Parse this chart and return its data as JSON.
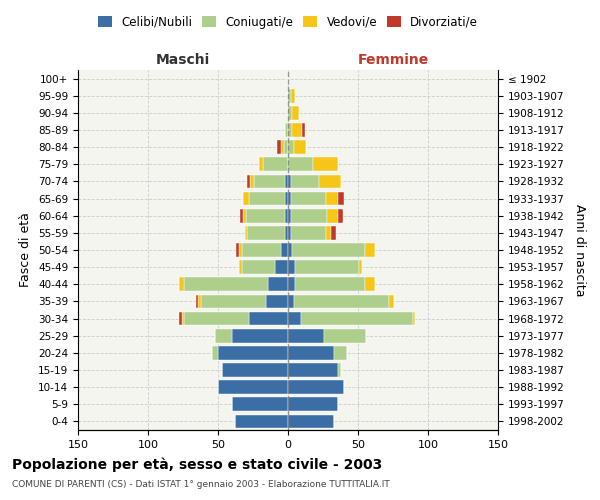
{
  "age_groups": [
    "0-4",
    "5-9",
    "10-14",
    "15-19",
    "20-24",
    "25-29",
    "30-34",
    "35-39",
    "40-44",
    "45-49",
    "50-54",
    "55-59",
    "60-64",
    "65-69",
    "70-74",
    "75-79",
    "80-84",
    "85-89",
    "90-94",
    "95-99",
    "100+"
  ],
  "birth_years": [
    "1998-2002",
    "1993-1997",
    "1988-1992",
    "1983-1987",
    "1978-1982",
    "1973-1977",
    "1968-1972",
    "1963-1967",
    "1958-1962",
    "1953-1957",
    "1948-1952",
    "1943-1947",
    "1938-1942",
    "1933-1937",
    "1928-1932",
    "1923-1927",
    "1918-1922",
    "1913-1917",
    "1908-1912",
    "1903-1907",
    "≤ 1902"
  ],
  "males_celibi": [
    38,
    40,
    50,
    47,
    50,
    40,
    28,
    16,
    14,
    9,
    5,
    2,
    2,
    2,
    2,
    0,
    0,
    0,
    0,
    0,
    0
  ],
  "males_coniugati": [
    0,
    0,
    0,
    0,
    4,
    12,
    46,
    46,
    60,
    24,
    28,
    27,
    28,
    26,
    22,
    18,
    3,
    2,
    0,
    0,
    0
  ],
  "males_vedovi": [
    0,
    0,
    0,
    0,
    0,
    0,
    2,
    2,
    4,
    2,
    2,
    2,
    2,
    4,
    3,
    3,
    2,
    0,
    0,
    0,
    0
  ],
  "males_divorziati": [
    0,
    0,
    0,
    0,
    0,
    0,
    2,
    2,
    0,
    0,
    2,
    0,
    2,
    0,
    2,
    0,
    3,
    0,
    0,
    0,
    0
  ],
  "females_nubili": [
    33,
    36,
    40,
    36,
    33,
    26,
    9,
    4,
    5,
    5,
    3,
    2,
    2,
    2,
    2,
    0,
    0,
    0,
    0,
    0,
    0
  ],
  "females_coniugate": [
    0,
    0,
    0,
    2,
    9,
    30,
    80,
    68,
    50,
    46,
    52,
    25,
    26,
    25,
    20,
    18,
    4,
    3,
    3,
    2,
    0
  ],
  "females_vedove": [
    0,
    0,
    0,
    0,
    0,
    0,
    2,
    4,
    7,
    2,
    7,
    4,
    8,
    9,
    16,
    18,
    9,
    7,
    5,
    3,
    0
  ],
  "females_divorziate": [
    0,
    0,
    0,
    0,
    0,
    0,
    0,
    0,
    0,
    0,
    0,
    3,
    3,
    4,
    0,
    0,
    0,
    2,
    0,
    0,
    0
  ],
  "color_celibi": "#3A6EA5",
  "color_coniugati": "#AECF8B",
  "color_vedovi": "#F5C518",
  "color_divorziati": "#C0392B",
  "title": "Popolazione per età, sesso e stato civile - 2003",
  "subtitle": "COMUNE DI PARENTI (CS) - Dati ISTAT 1° gennaio 2003 - Elaborazione TUTTITALIA.IT",
  "label_maschi": "Maschi",
  "label_femmine": "Femmine",
  "ylabel_left": "Fasce di età",
  "ylabel_right": "Anni di nascita",
  "legend_labels": [
    "Celibi/Nubili",
    "Coniugati/e",
    "Vedovi/e",
    "Divorziati/e"
  ],
  "xlim": 150,
  "bg_color": "#ffffff",
  "plot_bg": "#f5f5f0",
  "grid_color": "#cccccc"
}
